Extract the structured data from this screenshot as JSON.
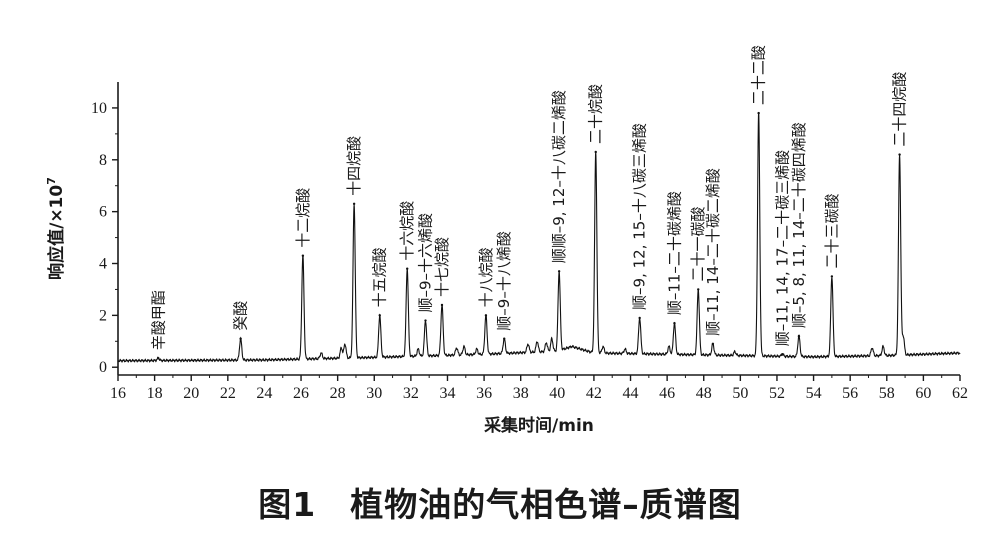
{
  "caption": "图1　植物油的气相色谱–质谱图",
  "chart_data": {
    "type": "line",
    "xlabel": "采集时间/min",
    "ylabel": "响应值/×10",
    "ylabel_exp": "7",
    "xlim": [
      16,
      62
    ],
    "ylim": [
      -0.3,
      11
    ],
    "xticks": [
      16,
      18,
      20,
      22,
      24,
      26,
      28,
      30,
      32,
      34,
      36,
      38,
      40,
      42,
      44,
      46,
      48,
      50,
      52,
      54,
      56,
      58,
      60,
      62
    ],
    "yticks": [
      0,
      2,
      4,
      6,
      8,
      10
    ],
    "baseline": [
      [
        16,
        0.25
      ],
      [
        24,
        0.28
      ],
      [
        30,
        0.38
      ],
      [
        36,
        0.5
      ],
      [
        40,
        0.62
      ],
      [
        40.8,
        0.8
      ],
      [
        42,
        0.55
      ],
      [
        46,
        0.5
      ],
      [
        50,
        0.45
      ],
      [
        54,
        0.4
      ],
      [
        58,
        0.45
      ],
      [
        62,
        0.55
      ]
    ],
    "peaks": [
      {
        "x": 18.2,
        "y": 0.35,
        "label": "辛酸甲酯"
      },
      {
        "x": 22.7,
        "y": 1.1,
        "label": "癸酸"
      },
      {
        "x": 26.1,
        "y": 4.3,
        "label": "十二烷酸"
      },
      {
        "x": 28.9,
        "y": 6.3,
        "label": "十四烷酸"
      },
      {
        "x": 30.3,
        "y": 2.0,
        "label": "十五烷酸"
      },
      {
        "x": 31.8,
        "y": 3.8,
        "label": "十六烷酸"
      },
      {
        "x": 32.8,
        "y": 1.8,
        "label": "顺–9–十六烯酸"
      },
      {
        "x": 33.7,
        "y": 2.4,
        "label": "十七烷酸"
      },
      {
        "x": 36.1,
        "y": 2.0,
        "label": "十八烷酸"
      },
      {
        "x": 37.1,
        "y": 1.1,
        "label": "顺–9–十八烯酸"
      },
      {
        "x": 40.1,
        "y": 3.7,
        "label": "顺顺–9, 12–十八碳二烯酸"
      },
      {
        "x": 42.1,
        "y": 8.3,
        "label": "二十烷酸"
      },
      {
        "x": 44.5,
        "y": 1.9,
        "label": "顺–9, 12, 15–十八碳三烯酸"
      },
      {
        "x": 46.4,
        "y": 1.7,
        "label": "顺–11–二十碳烯酸"
      },
      {
        "x": 47.7,
        "y": 3.0,
        "label": "二十一碳酸"
      },
      {
        "x": 48.5,
        "y": 0.9,
        "label": "顺–11, 14–二十碳二烯酸"
      },
      {
        "x": 51.0,
        "y": 9.8,
        "label": "二十二酸"
      },
      {
        "x": 52.3,
        "y": 0.5,
        "label": "顺–11, 14, 17–二十碳三烯酸"
      },
      {
        "x": 53.2,
        "y": 1.2,
        "label": "顺–5, 8, 11, 14–二十碳四烯酸"
      },
      {
        "x": 55.0,
        "y": 3.5,
        "label": "二十三碳酸"
      },
      {
        "x": 58.7,
        "y": 8.2,
        "label": "二十四烷酸"
      }
    ],
    "minor_peaks": [
      {
        "x": 27.1,
        "y": 0.55
      },
      {
        "x": 28.2,
        "y": 0.75
      },
      {
        "x": 28.4,
        "y": 0.9
      },
      {
        "x": 32.4,
        "y": 0.7
      },
      {
        "x": 34.5,
        "y": 0.75
      },
      {
        "x": 34.9,
        "y": 0.8
      },
      {
        "x": 35.6,
        "y": 0.7
      },
      {
        "x": 38.4,
        "y": 0.9
      },
      {
        "x": 38.9,
        "y": 1.0
      },
      {
        "x": 39.4,
        "y": 0.95
      },
      {
        "x": 39.7,
        "y": 1.1
      },
      {
        "x": 42.5,
        "y": 0.8
      },
      {
        "x": 43.7,
        "y": 0.7
      },
      {
        "x": 46.1,
        "y": 0.8
      },
      {
        "x": 49.7,
        "y": 0.6
      },
      {
        "x": 57.2,
        "y": 0.75
      },
      {
        "x": 57.8,
        "y": 0.8
      },
      {
        "x": 58.9,
        "y": 1.2
      }
    ]
  }
}
